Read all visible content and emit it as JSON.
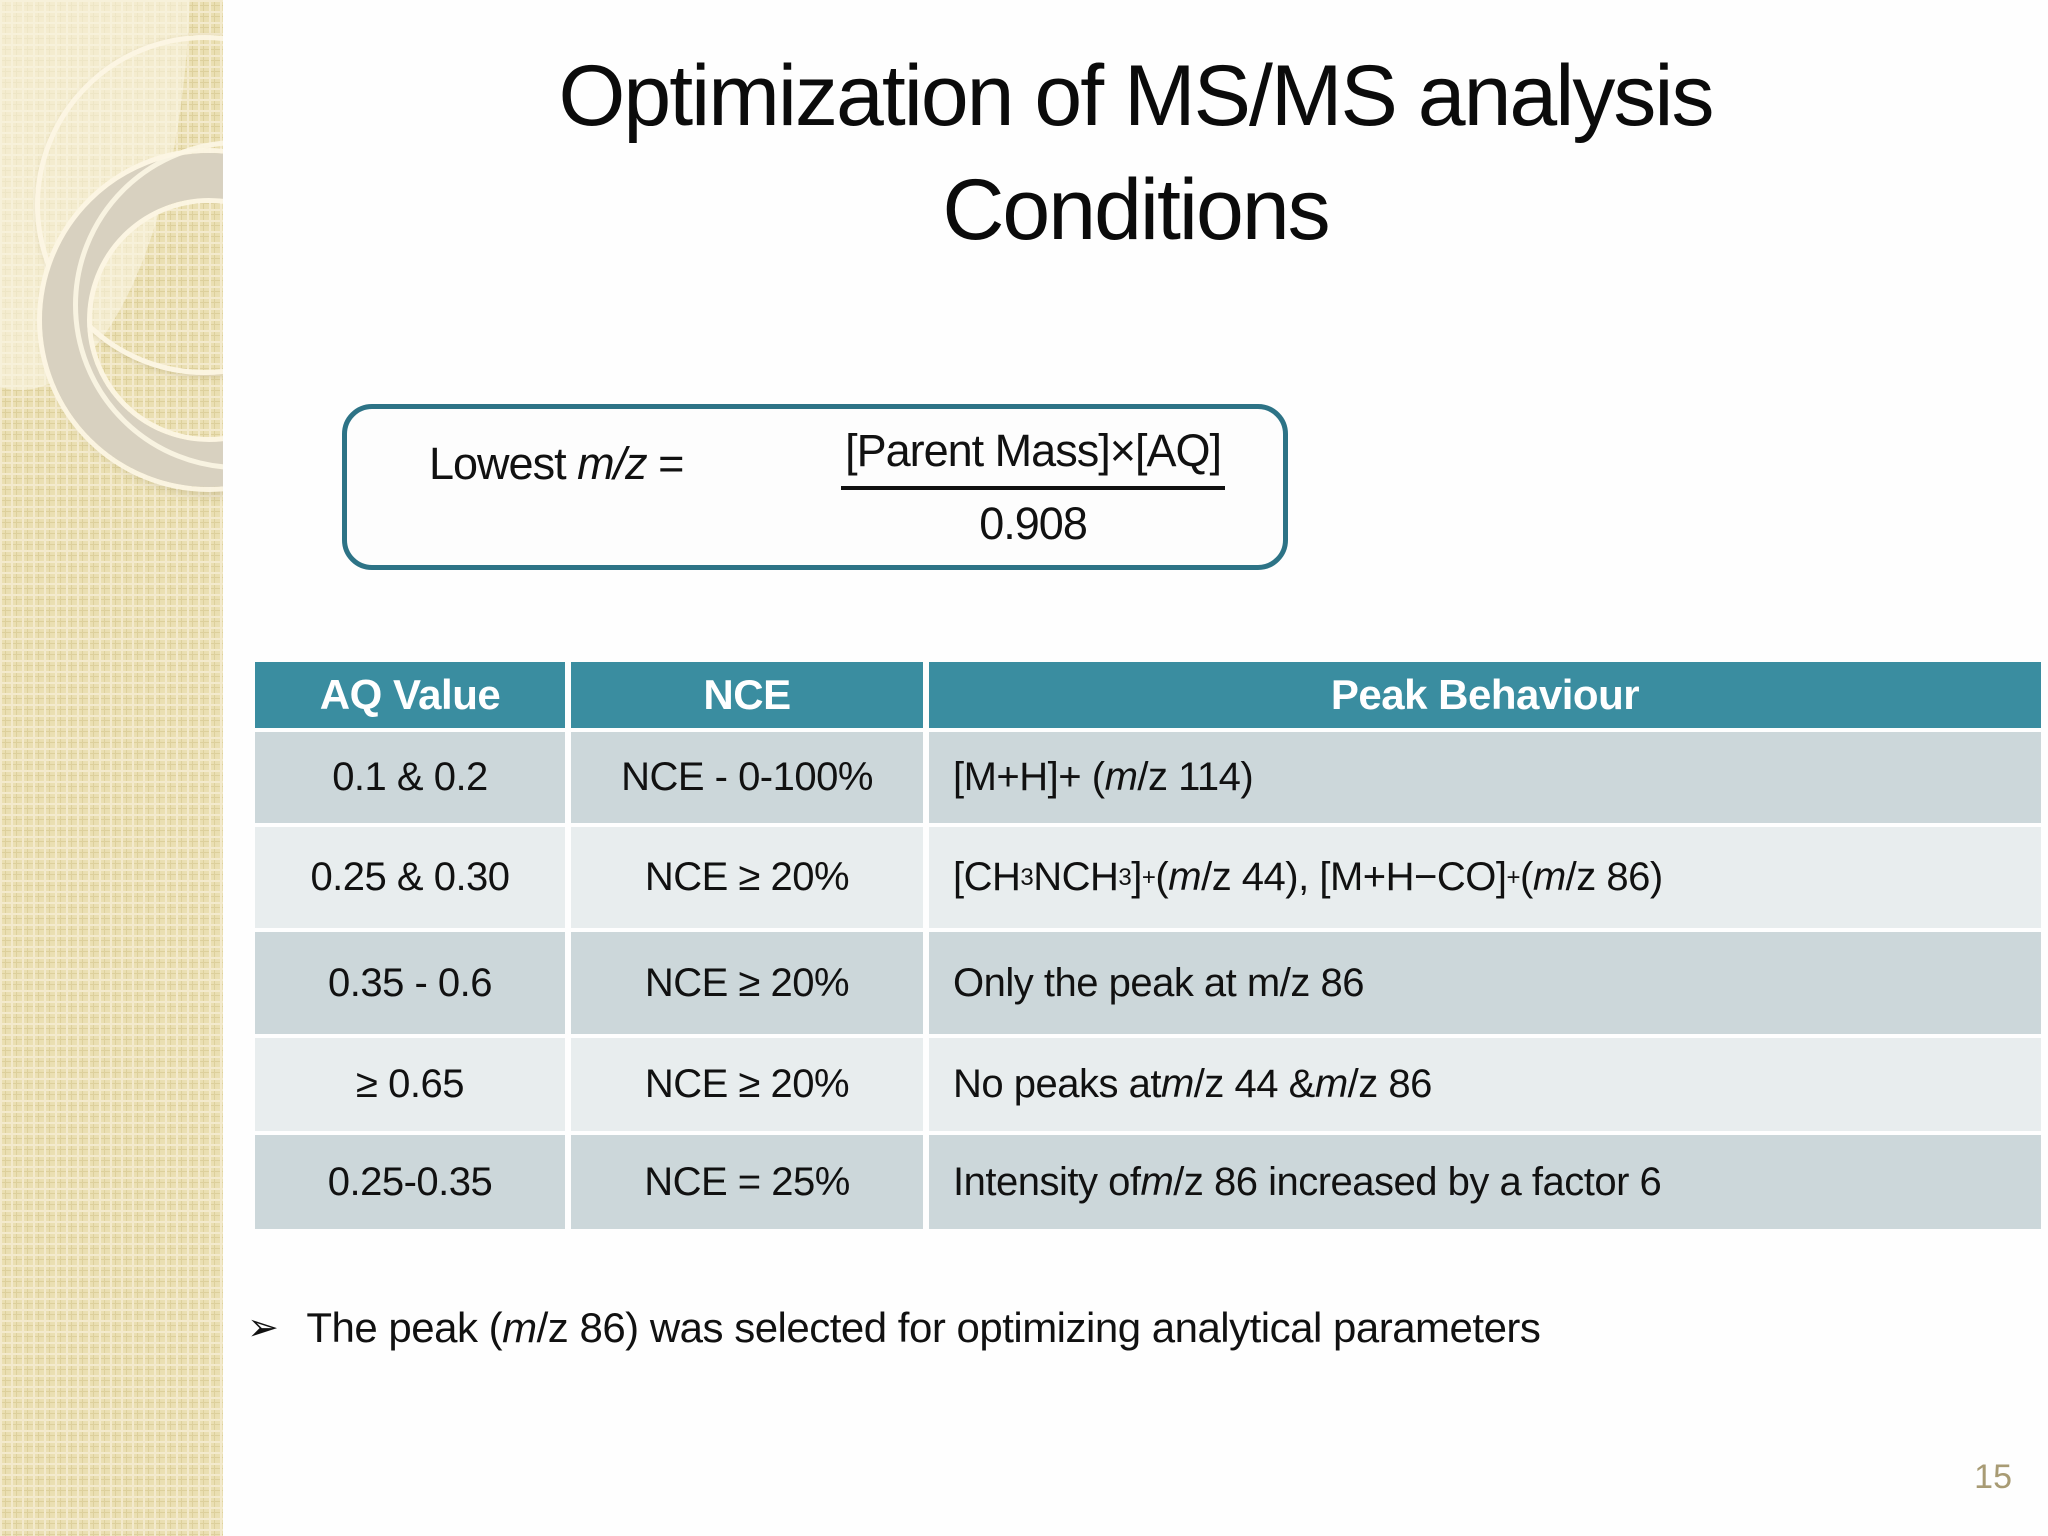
{
  "slide": {
    "title_line1": "Optimization of MS/MS analysis",
    "title_line2": "Conditions",
    "page_number": "15"
  },
  "formula": {
    "lhs_runs": [
      {
        "t": "Lowest "
      },
      {
        "t": "m/z",
        "i": true
      },
      {
        "t": "  ="
      }
    ],
    "numerator": "[Parent Mass]×[AQ]",
    "denominator": "0.908"
  },
  "table": {
    "headers": [
      "AQ Value",
      "NCE",
      "Peak Behaviour"
    ],
    "rows": [
      {
        "aq": "0.1 & 0.2",
        "nce": "NCE - 0-100%",
        "peak": [
          {
            "t": "[M+H]+   ("
          },
          {
            "t": "m",
            "i": true
          },
          {
            "t": "/z 114)"
          }
        ]
      },
      {
        "aq": "0.25 & 0.30",
        "nce": "NCE ≥ 20%",
        "peak": [
          {
            "t": "[CH"
          },
          {
            "t": "3",
            "sub": true
          },
          {
            "t": "NCH"
          },
          {
            "t": "3",
            "sub": true
          },
          {
            "t": "]"
          },
          {
            "t": "+",
            "sup": true
          },
          {
            "t": " ("
          },
          {
            "t": "m",
            "i": true
          },
          {
            "t": "/z 44), [M+H−CO]"
          },
          {
            "t": "+",
            "sup": true
          },
          {
            "t": " ("
          },
          {
            "t": "m",
            "i": true
          },
          {
            "t": "/z 86)"
          }
        ]
      },
      {
        "aq": "0.35 - 0.6",
        "nce": "NCE ≥ 20%",
        "peak": [
          {
            "t": "Only the peak at m/z 86"
          }
        ]
      },
      {
        "aq": "≥ 0.65",
        "nce": "NCE ≥ 20%",
        "peak": [
          {
            "t": "No peaks at "
          },
          {
            "t": "m",
            "i": true
          },
          {
            "t": "/z 44 & "
          },
          {
            "t": "m",
            "i": true
          },
          {
            "t": "/z 86"
          }
        ]
      },
      {
        "aq": "0.25-0.35",
        "nce": "NCE = 25%",
        "peak": [
          {
            "t": "Intensity of "
          },
          {
            "t": "m",
            "i": true
          },
          {
            "t": "/z 86 increased by a factor 6"
          }
        ]
      }
    ]
  },
  "footnote": {
    "bullet_icon": "➢",
    "runs": [
      {
        "t": "The peak ("
      },
      {
        "t": "m",
        "i": true
      },
      {
        "t": "/z 86) was selected for optimizing analytical parameters"
      }
    ]
  },
  "colors": {
    "header_teal": "#3a8da0",
    "box_border_teal": "#2d7386",
    "row_dark": "#ccd7da",
    "row_light": "#e8edee",
    "page_number": "#a89b74",
    "sidebar_base": "#eadfb2"
  }
}
